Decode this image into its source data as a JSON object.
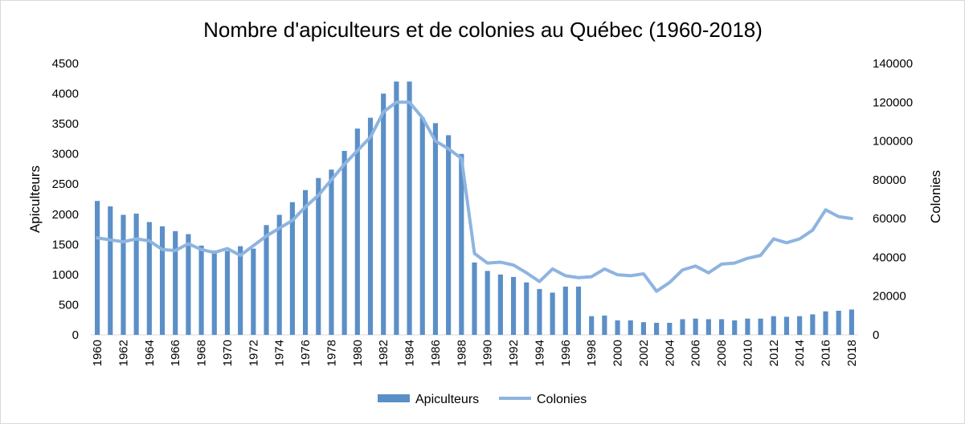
{
  "chart_data": {
    "type": "bar",
    "title": "Nombre d'apiculteurs et de colonies au Québec (1960-2018)",
    "ylabel_left": "Apiculteurs",
    "ylabel_right": "Colonies",
    "ylim_left": [
      0,
      4500
    ],
    "ylim_right": [
      0,
      140000
    ],
    "yticks_left": [
      0,
      500,
      1000,
      1500,
      2000,
      2500,
      3000,
      3500,
      4000,
      4500
    ],
    "yticks_right": [
      0,
      20000,
      40000,
      60000,
      80000,
      100000,
      120000,
      140000
    ],
    "x": [
      1960,
      1961,
      1962,
      1963,
      1964,
      1965,
      1966,
      1967,
      1968,
      1969,
      1970,
      1971,
      1972,
      1973,
      1974,
      1975,
      1976,
      1977,
      1978,
      1979,
      1980,
      1981,
      1982,
      1983,
      1984,
      1985,
      1986,
      1987,
      1988,
      1989,
      1990,
      1991,
      1992,
      1993,
      1994,
      1995,
      1996,
      1997,
      1998,
      1999,
      2000,
      2001,
      2002,
      2003,
      2004,
      2005,
      2006,
      2007,
      2008,
      2009,
      2010,
      2011,
      2012,
      2013,
      2014,
      2015,
      2016,
      2017,
      2018
    ],
    "xtick_labels": [
      "1960",
      "1962",
      "1964",
      "1966",
      "1968",
      "1970",
      "1972",
      "1974",
      "1976",
      "1978",
      "1980",
      "1982",
      "1984",
      "1986",
      "1988",
      "1990",
      "1992",
      "1994",
      "1996",
      "1998",
      "2000",
      "2002",
      "2004",
      "2006",
      "2008",
      "2010",
      "2012",
      "2014",
      "2016",
      "2018"
    ],
    "grid": false,
    "legend_position": "bottom",
    "series": [
      {
        "name": "Apiculteurs",
        "type": "bar",
        "axis": "left",
        "color": "#5b8fc7",
        "values": [
          2220,
          2130,
          1990,
          2010,
          1870,
          1800,
          1720,
          1670,
          1480,
          1400,
          1390,
          1470,
          1430,
          1820,
          1990,
          2200,
          2400,
          2600,
          2740,
          3050,
          3420,
          3600,
          4000,
          4200,
          4200,
          3600,
          3510,
          3310,
          3000,
          1200,
          1060,
          1000,
          960,
          870,
          760,
          700,
          800,
          800,
          310,
          320,
          240,
          240,
          210,
          200,
          200,
          260,
          270,
          260,
          260,
          240,
          270,
          270,
          310,
          300,
          310,
          340,
          390,
          400,
          420
        ]
      },
      {
        "name": "Colonies",
        "type": "line",
        "axis": "right",
        "color": "#8eb4e0",
        "values": [
          50000,
          49000,
          48000,
          49500,
          48500,
          44000,
          43500,
          47000,
          44000,
          42500,
          44500,
          41000,
          46000,
          51000,
          55000,
          59000,
          66000,
          72000,
          80000,
          88000,
          95000,
          102000,
          115000,
          120000,
          120000,
          112000,
          100000,
          96000,
          91000,
          42000,
          37000,
          37500,
          36000,
          32000,
          27500,
          34000,
          30500,
          29500,
          30000,
          34000,
          31000,
          30500,
          31500,
          22500,
          27000,
          33500,
          35500,
          32000,
          36500,
          37000,
          39500,
          41000,
          49500,
          47500,
          49500,
          54000,
          64500,
          61000,
          60000
        ]
      }
    ]
  }
}
